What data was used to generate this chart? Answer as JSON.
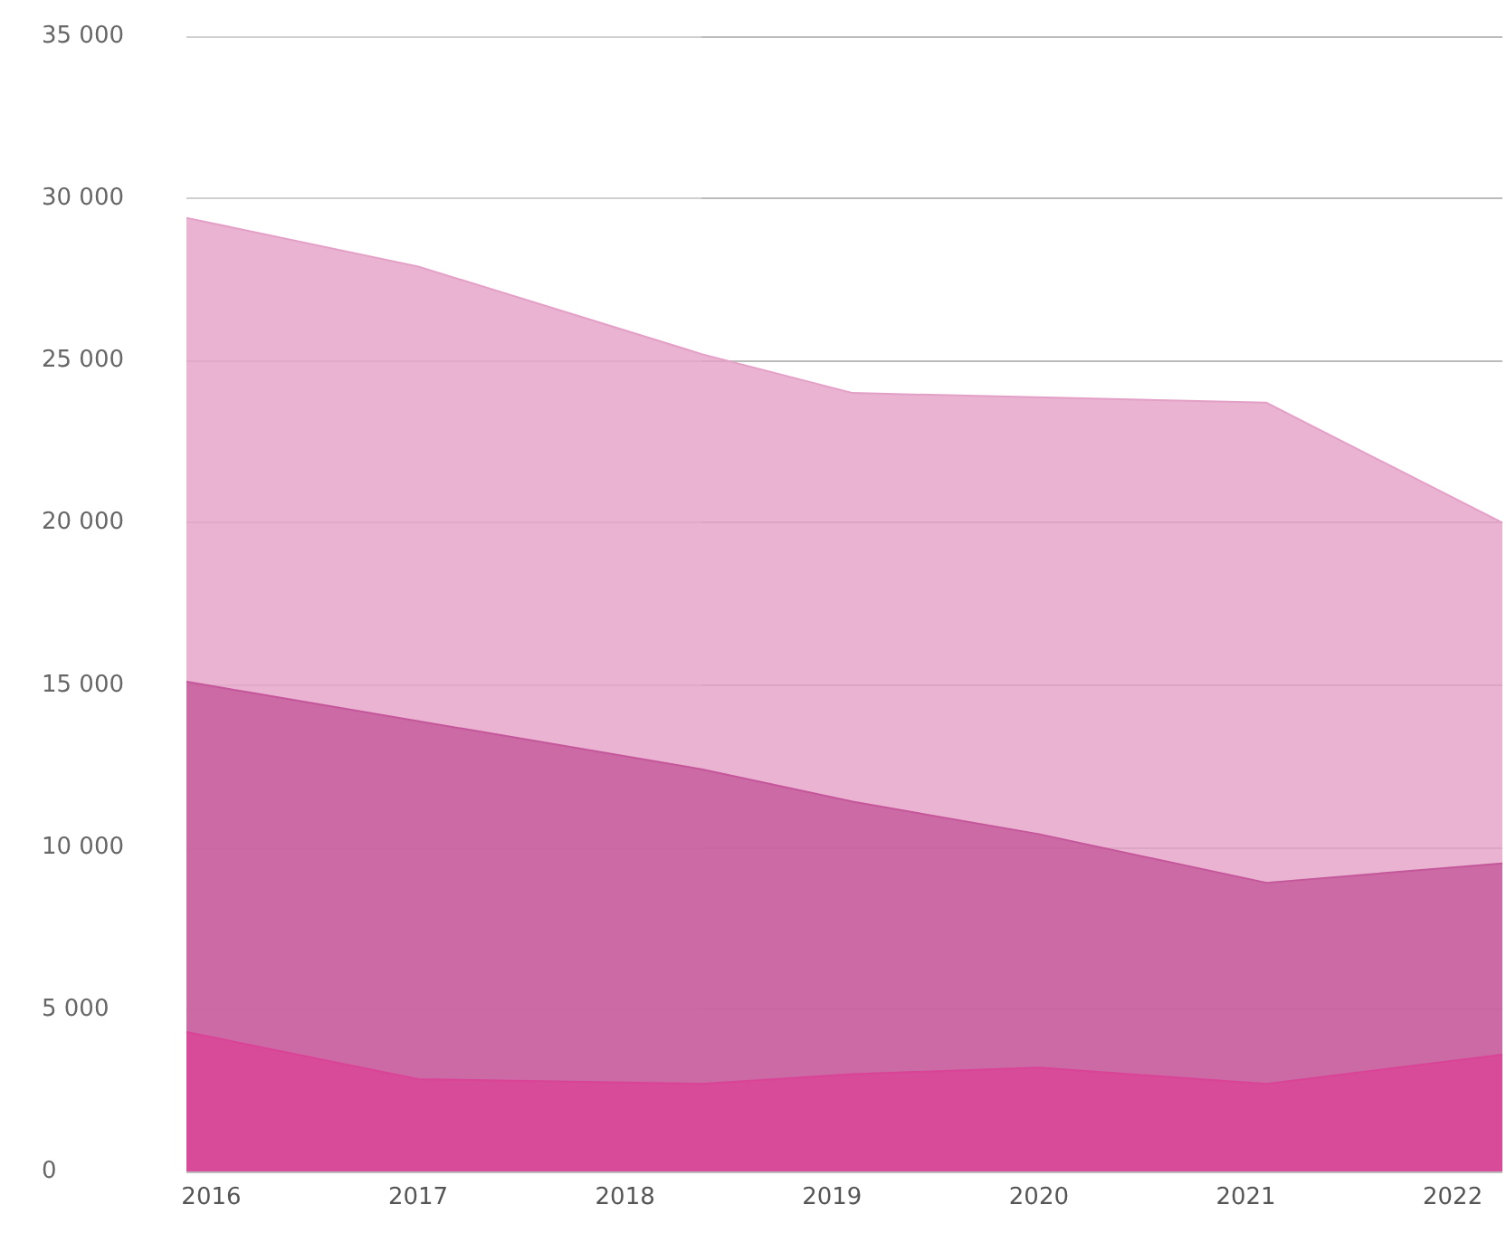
{
  "chart_data": {
    "type": "area",
    "xlim": [
      2015.88,
      2022.24
    ],
    "xticks": [
      2016,
      2017,
      2018,
      2019,
      2020,
      2021,
      2022
    ],
    "ylim": [
      0,
      35000
    ],
    "yticks": [
      0,
      {
        "value": 5000,
        "label": "5 000"
      },
      {
        "value": 10000,
        "label": "10 000"
      },
      {
        "value": 15000,
        "label": "15 000"
      },
      {
        "value": 20000,
        "label": "20 000"
      },
      {
        "value": 25000,
        "label": "25 000"
      },
      {
        "value": 30000,
        "label": "30 000"
      },
      {
        "value": 35000,
        "label": "35 000"
      }
    ],
    "grid": "y",
    "marker": "none",
    "series": [
      {
        "color": "#e3a0c6",
        "x": [
          2015.88,
          2017.0,
          2018.37,
          2019.1,
          2021.1,
          2022.24
        ],
        "values": [
          29400,
          27900,
          25200,
          24000,
          23700,
          20000
        ]
      },
      {
        "color": "#c4579a",
        "x": [
          2015.88,
          2018.37,
          2019.1,
          2020.0,
          2021.1,
          2022.24
        ],
        "values": [
          15100,
          12400,
          11400,
          10400,
          8900,
          9500
        ]
      },
      {
        "color": "#d94496",
        "x": [
          2015.88,
          2017.0,
          2018.37,
          2019.1,
          2020.0,
          2021.1,
          2022.24
        ],
        "values": [
          4300,
          2850,
          2700,
          3000,
          3200,
          2700,
          3600
        ]
      }
    ],
    "bands": [
      {
        "axis": "x",
        "from": 2015.88,
        "to": 2018.37,
        "color": "#ffffff"
      }
    ]
  }
}
